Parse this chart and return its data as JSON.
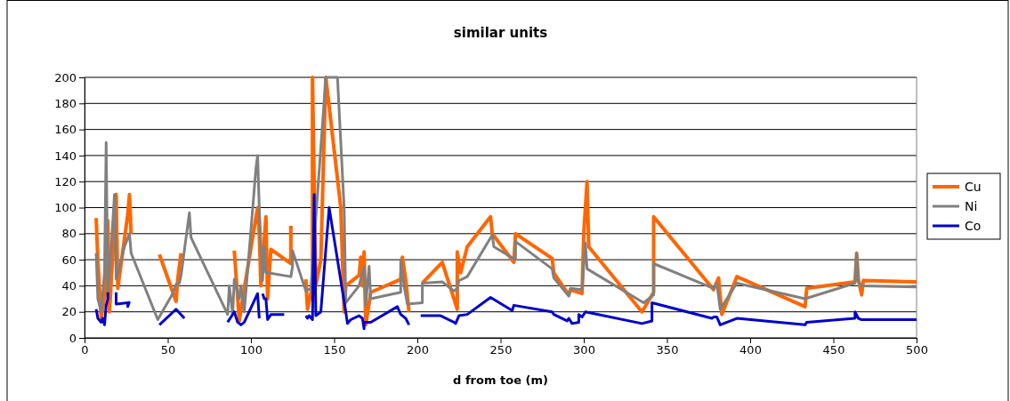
{
  "chart_data": {
    "type": "line",
    "title": "similar units",
    "xlabel": "d from toe (m)",
    "xlim": [
      0,
      500
    ],
    "xticks": [
      0,
      50,
      100,
      150,
      200,
      250,
      300,
      350,
      400,
      450,
      500
    ],
    "ylim": [
      0,
      200
    ],
    "yticks": [
      0,
      20,
      40,
      60,
      80,
      100,
      120,
      140,
      160,
      180,
      200
    ],
    "grid": "y",
    "legend": "right",
    "line_style": "solid",
    "marker": "none",
    "series": [
      {
        "name": "Cu",
        "color": "#ff6600",
        "x": [
          7,
          8,
          10,
          13,
          14,
          15,
          19,
          20,
          26,
          27,
          28,
          35,
          45,
          55,
          56,
          58,
          70,
          90,
          93,
          95,
          104,
          105,
          106,
          109,
          110,
          112,
          124,
          124,
          130,
          133,
          134,
          137,
          137,
          139,
          142,
          145,
          154,
          156,
          157,
          165,
          166,
          167,
          168,
          169,
          172,
          190,
          191,
          193,
          195,
          200,
          203,
          215,
          222,
          224,
          224,
          226,
          230,
          244,
          245,
          258,
          259,
          281,
          282,
          291,
          292,
          299,
          300,
          302,
          303,
          335,
          342,
          342,
          378,
          381,
          383,
          392,
          433,
          434,
          463,
          464,
          465,
          467,
          468,
          500
        ],
        "values": [
          92,
          60,
          15,
          40,
          90,
          20,
          110,
          38,
          95,
          110,
          80,
          null,
          64,
          28,
          45,
          65,
          null,
          67,
          13,
          30,
          100,
          80,
          40,
          93,
          30,
          68,
          57,
          86,
          null,
          45,
          22,
          40,
          200,
          40,
          60,
          200,
          100,
          20,
          40,
          48,
          62,
          40,
          66,
          10,
          35,
          45,
          62,
          45,
          20,
          null,
          42,
          58,
          30,
          22,
          66,
          50,
          70,
          93,
          80,
          58,
          80,
          61,
          50,
          33,
          37,
          34,
          80,
          120,
          70,
          20,
          35,
          93,
          37,
          46,
          18,
          47,
          24,
          38,
          43,
          65,
          45,
          33,
          44,
          43
        ]
      },
      {
        "name": "Ni",
        "color": "#808080",
        "x": [
          7,
          8,
          10,
          12,
          13,
          14,
          18,
          19,
          24,
          27,
          28,
          44,
          53,
          55,
          57,
          58,
          63,
          64,
          86,
          87,
          89,
          90,
          93,
          94,
          96,
          103,
          104,
          105,
          107,
          108,
          109,
          110,
          124,
          125,
          125,
          133,
          136,
          145,
          152,
          156,
          157,
          165,
          168,
          169,
          171,
          172,
          190,
          190,
          192,
          194,
          203,
          203,
          215,
          222,
          224,
          225,
          230,
          245,
          246,
          259,
          259,
          281,
          282,
          291,
          292,
          299,
          301,
          302,
          336,
          342,
          342,
          378,
          380,
          382,
          392,
          433,
          463,
          464,
          465,
          467,
          500
        ],
        "values": [
          65,
          30,
          20,
          50,
          150,
          30,
          110,
          45,
          70,
          80,
          65,
          14,
          34,
          41,
          42,
          48,
          96,
          77,
          18,
          40,
          18,
          45,
          30,
          40,
          20,
          130,
          140,
          100,
          44,
          70,
          50,
          50,
          47,
          55,
          67,
          36,
          38,
          200,
          200,
          100,
          27,
          40,
          55,
          25,
          55,
          30,
          35,
          60,
          40,
          26,
          27,
          42,
          43,
          36,
          38,
          44,
          47,
          79,
          70,
          60,
          74,
          53,
          46,
          32,
          38,
          37,
          73,
          53,
          27,
          33,
          57,
          38,
          42,
          22,
          42,
          30,
          42,
          65,
          43,
          40,
          39
        ]
      },
      {
        "name": "Co",
        "color": "#0000cc",
        "x": [
          7,
          8,
          10,
          11,
          12,
          13,
          14,
          14,
          16,
          19,
          19,
          26,
          26,
          27,
          35,
          45,
          55,
          60,
          70,
          86,
          90,
          92,
          94,
          96,
          104,
          105,
          106,
          107,
          108,
          109,
          110,
          112,
          120,
          128,
          133,
          134,
          135,
          137,
          138,
          139,
          142,
          147,
          157,
          158,
          160,
          165,
          167,
          168,
          168,
          172,
          188,
          190,
          193,
          195,
          198,
          202,
          214,
          222,
          223,
          225,
          230,
          244,
          257,
          258,
          281,
          282,
          290,
          291,
          293,
          297,
          297,
          299,
          301,
          335,
          341,
          341,
          377,
          378,
          380,
          381,
          382,
          392,
          433,
          434,
          463,
          463,
          465,
          467,
          500
        ],
        "values": [
          22,
          15,
          12,
          15,
          10,
          25,
          30,
          35,
          null,
          35,
          26,
          27,
          24,
          28,
          null,
          10,
          22,
          15,
          null,
          12,
          20,
          12,
          10,
          12,
          34,
          15,
          null,
          34,
          30,
          30,
          14,
          18,
          18,
          null,
          17,
          15,
          17,
          14,
          110,
          17,
          20,
          100,
          20,
          11,
          14,
          17,
          15,
          7,
          12,
          12,
          24,
          18,
          15,
          10,
          null,
          17,
          17,
          12,
          11,
          17,
          18,
          31,
          21,
          25,
          20,
          18,
          13,
          15,
          11,
          12,
          18,
          16,
          20,
          11,
          13,
          27,
          15,
          16,
          16,
          13,
          10,
          15,
          10,
          12,
          15,
          20,
          15,
          14,
          14
        ]
      }
    ]
  }
}
